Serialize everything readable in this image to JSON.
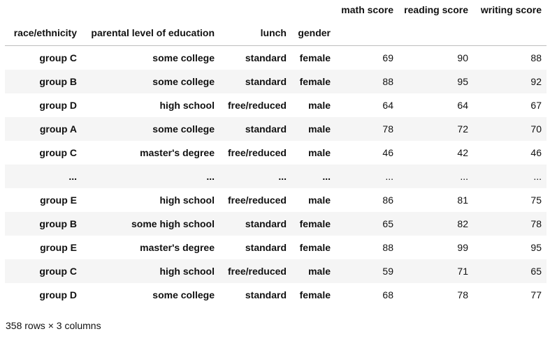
{
  "table": {
    "column_names": [
      "math score",
      "reading score",
      "writing score"
    ],
    "index_names": [
      "race/ethnicity",
      "parental level of education",
      "lunch",
      "gender"
    ],
    "rows": [
      {
        "index": [
          "group C",
          "some college",
          "standard",
          "female"
        ],
        "values": [
          69,
          90,
          88
        ]
      },
      {
        "index": [
          "group B",
          "some college",
          "standard",
          "female"
        ],
        "values": [
          88,
          95,
          92
        ]
      },
      {
        "index": [
          "group D",
          "high school",
          "free/reduced",
          "male"
        ],
        "values": [
          64,
          64,
          67
        ]
      },
      {
        "index": [
          "group A",
          "some college",
          "standard",
          "male"
        ],
        "values": [
          78,
          72,
          70
        ]
      },
      {
        "index": [
          "group C",
          "master's degree",
          "free/reduced",
          "male"
        ],
        "values": [
          46,
          42,
          46
        ]
      },
      {
        "index": [
          "...",
          "...",
          "...",
          "..."
        ],
        "values": [
          "...",
          "...",
          "..."
        ]
      },
      {
        "index": [
          "group E",
          "high school",
          "free/reduced",
          "male"
        ],
        "values": [
          86,
          81,
          75
        ]
      },
      {
        "index": [
          "group B",
          "some high school",
          "standard",
          "female"
        ],
        "values": [
          65,
          82,
          78
        ]
      },
      {
        "index": [
          "group E",
          "master's degree",
          "standard",
          "female"
        ],
        "values": [
          88,
          99,
          95
        ]
      },
      {
        "index": [
          "group C",
          "high school",
          "free/reduced",
          "male"
        ],
        "values": [
          59,
          71,
          65
        ]
      },
      {
        "index": [
          "group D",
          "some college",
          "standard",
          "female"
        ],
        "values": [
          68,
          78,
          77
        ]
      }
    ]
  },
  "footer": "358 rows × 3 columns"
}
